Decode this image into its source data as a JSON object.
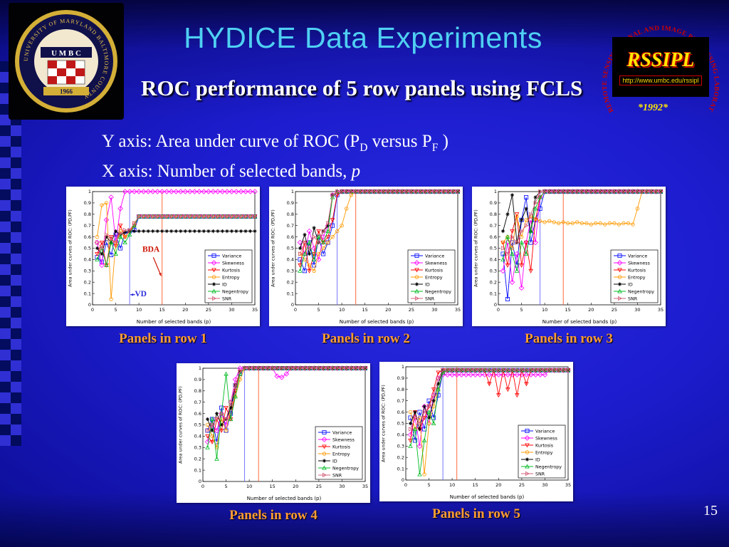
{
  "slide": {
    "title": "HYDICE Data Experiments",
    "subtitle": "ROC performance of 5 row panels using FCLS",
    "page_number": "15",
    "axis_note": {
      "y_pre": "Y axis: Area under curve of ROC (P",
      "y_sub1": "D",
      "y_mid": " versus P",
      "y_sub2": "F",
      "y_post": " )",
      "x_pre": "X axis: Number of selected bands, ",
      "x_italic": "p"
    }
  },
  "logos": {
    "umbc": {
      "ring_text": "UNIVERSITY OF MARYLAND BALTIMORE COUNTY ",
      "letters": "U M B C",
      "year": "1966"
    },
    "rssipl": {
      "name": "RSSIPL",
      "url": "http://www.umbc.edu/rssipl",
      "year": "*1992*",
      "arc": "REMOTE SENSING SIGNAL AND IMAGE PROCESSING LABORATORY"
    }
  },
  "colors": {
    "title": "#4fd0f2",
    "subtitle": "#ffffff",
    "caption": "#ff9d33",
    "vd_line": "#6a6aff",
    "bda_line": "#ff5a28",
    "background": "#1d1dcf"
  },
  "chart_data": {
    "type": "line",
    "title": "ROC performance of 5 row panels using FCLS",
    "xlabel": "Number of selected bands (p)",
    "ylabel": "Area under curves of ROC: (PD,PF)",
    "x_range": [
      0,
      35
    ],
    "y_range": [
      0,
      1
    ],
    "x_ticks": [
      0,
      5,
      10,
      15,
      20,
      25,
      30,
      35
    ],
    "y_ticks": [
      0,
      0.1,
      0.2,
      0.3,
      0.4,
      0.5,
      0.6,
      0.7,
      0.8,
      0.9,
      1
    ],
    "legend_position": "lower right inside",
    "grid": false,
    "x_start": 1,
    "x_fill_to": 35,
    "note": "Series values are for p=1..N; the last value repeats out to p=35. vd_line (blue) and bda_line (red) are vertical reference lines.",
    "series_style": [
      {
        "name": "Variance",
        "color": "#0008ff",
        "marker": "square"
      },
      {
        "name": "Skewness",
        "color": "#ff00ff",
        "marker": "diamond"
      },
      {
        "name": "Kurtosis",
        "color": "#ff0000",
        "marker": "tri-down"
      },
      {
        "name": "Entropy",
        "color": "#ff9900",
        "marker": "circle"
      },
      {
        "name": "ID",
        "color": "#000000",
        "marker": "star"
      },
      {
        "name": "Negentropy",
        "color": "#00bb22",
        "marker": "tri-up"
      },
      {
        "name": "SNR",
        "color": "#d4607a",
        "marker": "tri-right"
      }
    ],
    "panels": [
      {
        "caption": "Panels in row 1",
        "vd_line": 8,
        "bda_line": 15,
        "annotations": [
          {
            "text": "BDA",
            "color": "#cc1100",
            "tx": 12.6,
            "ty": 0.47,
            "ax1": 13.1,
            "ay1": 0.42,
            "ax2": 14.8,
            "ay2": 0.255
          },
          {
            "text": "VD",
            "color": "#2b2bdd",
            "tx": 10.4,
            "ty": 0.075,
            "ax1": 9.2,
            "ay1": 0.09,
            "ax2": 8.15,
            "ay2": 0.09
          }
        ],
        "series": {
          "Variance": [
            0.42,
            0.38,
            0.55,
            0.44,
            0.62,
            0.5,
            0.63,
            0.65,
            0.66,
            0.78
          ],
          "Skewness": [
            0.55,
            0.35,
            0.75,
            0.95,
            0.55,
            0.85,
            1
          ],
          "Kurtosis": [
            0.45,
            0.55,
            0.35,
            0.6,
            0.52,
            0.7,
            0.6,
            0.65,
            0.7,
            0.78
          ],
          "Entropy": [
            0.6,
            0.88,
            0.9,
            0.05,
            0.55,
            0.65,
            0.6,
            0.65,
            0.72,
            0.78
          ],
          "ID": [
            0.5,
            0.45,
            0.6,
            0.55,
            0.65,
            0.62,
            0.64,
            0.65,
            0.65
          ],
          "Negentropy": [
            0.4,
            0.5,
            0.35,
            0.55,
            0.45,
            0.6,
            0.55,
            0.62,
            0.7,
            0.78
          ],
          "SNR": [
            0.55,
            0.5,
            0.62,
            0.58,
            0.55,
            0.63,
            0.66,
            0.66,
            0.72,
            0.78
          ]
        }
      },
      {
        "caption": "Panels in row 2",
        "vd_line": 9,
        "bda_line": 13,
        "annotations": [],
        "series": {
          "Variance": [
            0.4,
            0.3,
            0.55,
            0.35,
            0.6,
            0.45,
            0.55,
            0.7,
            0.97,
            1
          ],
          "Skewness": [
            0.55,
            0.45,
            0.65,
            0.5,
            0.4,
            0.6,
            0.7,
            0.97,
            1
          ],
          "Kurtosis": [
            0.35,
            0.55,
            0.3,
            0.45,
            0.65,
            0.55,
            0.6,
            0.75,
            0.97,
            1
          ],
          "Entropy": [
            0.45,
            0.4,
            0.35,
            0.3,
            0.45,
            0.5,
            0.55,
            0.6,
            0.65,
            0.7,
            0.85,
            0.97,
            1
          ],
          "ID": [
            0.5,
            0.62,
            0.45,
            0.68,
            0.55,
            0.65,
            0.7,
            0.97,
            1
          ],
          "Negentropy": [
            0.3,
            0.45,
            0.55,
            0.4,
            0.6,
            0.55,
            0.65,
            0.95,
            1
          ],
          "SNR": [
            0.45,
            0.55,
            0.5,
            0.6,
            0.55,
            0.65,
            0.72,
            0.97,
            1
          ]
        }
      },
      {
        "caption": "Panels in row 3",
        "vd_line": 9,
        "bda_line": 14,
        "annotations": [],
        "series": {
          "Variance": [
            0.45,
            0.05,
            0.55,
            0.35,
            0.75,
            0.95,
            0.55,
            0.75,
            0.85,
            1
          ],
          "Skewness": [
            0.3,
            0.55,
            0.2,
            0.45,
            0.15,
            0.55,
            0.75,
            0.55,
            0.95,
            1
          ],
          "Kurtosis": [
            0.55,
            0.35,
            0.65,
            0.8,
            0.35,
            0.55,
            0.3,
            0.75,
            0.95,
            1
          ],
          "Entropy": [
            0.55,
            0.6,
            0.5,
            0.78,
            0.6,
            0.75,
            0.78,
            0.76,
            0.74,
            0.73,
            0.74,
            0.73,
            0.72,
            0.73,
            0.72,
            0.72,
            0.73,
            0.72,
            0.72,
            0.71,
            0.72,
            0.72,
            0.71,
            0.72,
            0.72,
            0.71,
            0.72,
            0.72,
            0.71,
            0.85,
            1
          ],
          "ID": [
            0.65,
            0.8,
            0.97,
            0.55,
            0.75,
            0.85,
            0.65,
            0.95,
            1
          ],
          "Negentropy": [
            0.4,
            0.6,
            0.45,
            0.3,
            0.55,
            0.45,
            0.65,
            0.85,
            0.95,
            1
          ],
          "SNR": [
            0.5,
            0.45,
            0.6,
            0.55,
            0.65,
            0.7,
            0.8,
            0.9,
            1
          ]
        }
      },
      {
        "caption": "Panels in row 4",
        "vd_line": 9,
        "bda_line": 12,
        "annotations": [],
        "series": {
          "Variance": [
            0.45,
            0.55,
            0.35,
            0.65,
            0.45,
            0.6,
            0.85,
            0.95,
            1
          ],
          "Skewness": [
            0.35,
            0.5,
            0.45,
            0.6,
            0.5,
            0.7,
            0.9,
            1,
            1,
            1,
            1,
            1,
            1,
            1,
            1,
            0.93,
            0.92,
            0.95,
            1
          ],
          "Kurtosis": [
            0.4,
            0.35,
            0.55,
            0.45,
            0.65,
            0.55,
            0.8,
            0.97,
            1
          ],
          "Entropy": [
            0.5,
            0.4,
            0.3,
            0.55,
            0.45,
            0.65,
            0.75,
            0.9,
            1
          ],
          "ID": [
            0.55,
            0.45,
            0.6,
            0.5,
            0.55,
            0.65,
            0.85,
            0.97,
            1
          ],
          "Negentropy": [
            0.3,
            0.55,
            0.2,
            0.6,
            0.95,
            0.55,
            0.75,
            0.95,
            1
          ],
          "SNR": [
            0.45,
            0.5,
            0.55,
            0.6,
            0.55,
            0.7,
            0.85,
            0.97,
            1
          ]
        }
      },
      {
        "caption": "Panels in row 5",
        "vd_line": 8,
        "bda_line": 11,
        "annotations": [],
        "series": {
          "Variance": [
            0.55,
            0.35,
            0.6,
            0.45,
            0.7,
            0.55,
            0.75,
            0.95,
            0.97
          ],
          "Skewness": [
            0.4,
            0.55,
            0.3,
            0.65,
            0.5,
            0.75,
            0.9,
            0.93,
            0.93,
            0.93,
            0.93,
            0.93,
            0.93,
            0.93,
            0.93,
            0.93,
            0.93,
            0.93,
            0.93,
            0.93,
            0.93,
            0.93,
            0.93,
            0.93,
            0.93,
            0.93,
            0.93,
            0.93,
            0.93,
            0.93,
            0.97
          ],
          "Kurtosis": [
            0.35,
            0.6,
            0.45,
            0.55,
            0.65,
            0.8,
            0.95,
            0.97,
            0.97,
            0.97,
            0.97,
            0.97,
            0.97,
            0.97,
            0.97,
            0.97,
            0.97,
            0.85,
            0.97,
            0.75,
            0.97,
            0.8,
            0.97,
            0.75,
            0.97,
            0.85,
            0.97
          ],
          "Entropy": [
            0.6,
            0.45,
            0.55,
            0.05,
            0.5,
            0.65,
            0.8,
            0.95,
            0.97
          ],
          "ID": [
            0.5,
            0.6,
            0.45,
            0.65,
            0.55,
            0.7,
            0.85,
            0.97
          ],
          "Negentropy": [
            0.3,
            0.45,
            0.05,
            0.35,
            0.6,
            0.5,
            0.8,
            0.95,
            0.97
          ],
          "SNR": [
            0.45,
            0.55,
            0.5,
            0.6,
            0.65,
            0.75,
            0.9,
            0.97
          ]
        }
      }
    ]
  }
}
